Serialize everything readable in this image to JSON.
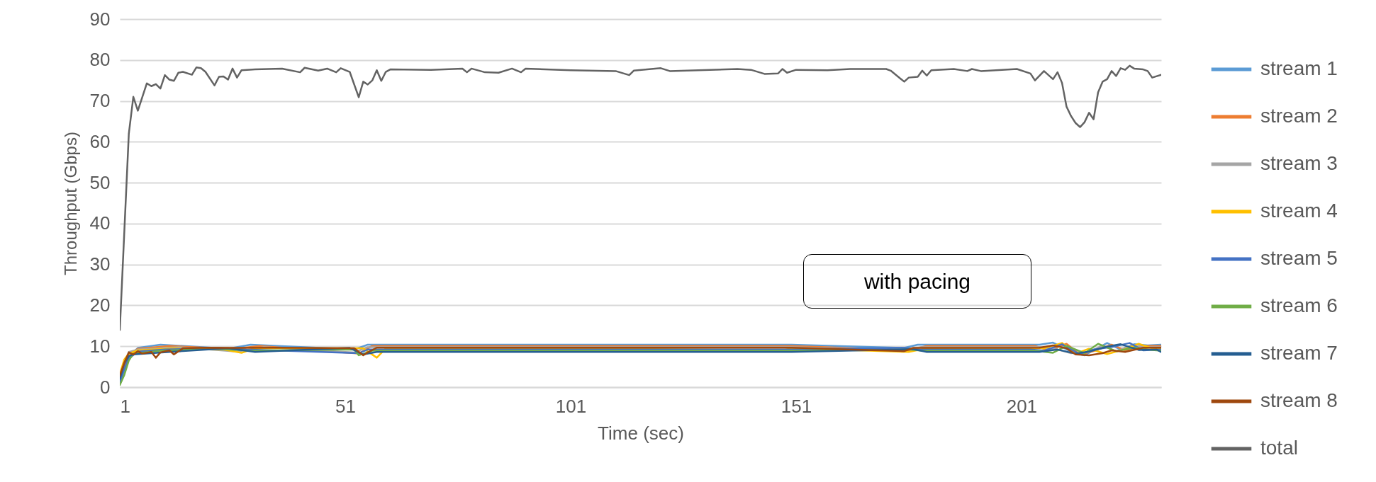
{
  "chart_data": {
    "type": "line",
    "xlabel": "Time (sec)",
    "ylabel": "Throughput (Gbps)",
    "xlim": [
      1,
      232
    ],
    "xticks": [
      1,
      51,
      101,
      151,
      201
    ],
    "ylim": [
      0,
      90
    ],
    "yticks": [
      0,
      10,
      20,
      30,
      40,
      50,
      60,
      70,
      80,
      90
    ],
    "grid": "y",
    "legend": "right",
    "annotations": [
      "with pacing"
    ],
    "series": [
      {
        "name": "stream 1",
        "color": "#5b9bd5",
        "x": [
          1,
          2,
          3,
          5,
          10,
          25,
          30,
          53,
          56,
          100,
          150,
          175,
          178,
          205,
          208,
          212,
          215,
          218,
          220,
          223,
          226,
          229,
          232
        ],
        "values": [
          0.8,
          4,
          7.5,
          9.6,
          10.4,
          9.4,
          10.4,
          9.2,
          10.4,
          10.4,
          10.4,
          9.6,
          10.4,
          10.4,
          10.9,
          8.7,
          7.8,
          9.6,
          10.8,
          9.2,
          10.5,
          10.2,
          10.4
        ]
      },
      {
        "name": "stream 2",
        "color": "#ed7d31",
        "x": [
          1,
          2,
          3,
          5,
          12,
          26,
          32,
          54,
          57,
          100,
          150,
          176,
          180,
          204,
          207,
          211,
          214,
          217,
          221,
          224,
          228,
          232
        ],
        "values": [
          1.6,
          5,
          8,
          9.4,
          10.1,
          9.3,
          10.1,
          8.2,
          10.1,
          10.1,
          10.1,
          9.0,
          10.1,
          10.1,
          9.0,
          10.6,
          8.0,
          8.8,
          10.4,
          9.0,
          10.1,
          10.1
        ]
      },
      {
        "name": "stream 3",
        "color": "#a5a5a5",
        "x": [
          1,
          2,
          3,
          5,
          14,
          27,
          33,
          53,
          56,
          100,
          150,
          174,
          179,
          205,
          209,
          212,
          216,
          219,
          222,
          225,
          229,
          232
        ],
        "values": [
          2.4,
          6,
          8.6,
          9.2,
          9.8,
          8.7,
          9.8,
          8.5,
          9.8,
          9.8,
          9.8,
          9.1,
          9.8,
          9.8,
          9.2,
          8.3,
          8.6,
          10.2,
          8.7,
          10.1,
          9.8,
          9.8
        ]
      },
      {
        "name": "stream 4",
        "color": "#ffc000",
        "x": [
          1,
          2,
          3,
          5,
          13,
          24,
          28,
          31,
          55,
          58,
          60,
          100,
          148,
          150,
          176,
          180,
          206,
          210,
          213,
          216,
          220,
          224,
          227,
          230,
          232
        ],
        "values": [
          3.2,
          6.8,
          8.2,
          9.0,
          9.5,
          9.2,
          8.4,
          9.5,
          9.5,
          7.2,
          9.5,
          9.5,
          9.0,
          9.5,
          8.6,
          9.5,
          9.5,
          10.8,
          8.2,
          9.4,
          8.1,
          9.3,
          10.6,
          9.5,
          9.5
        ]
      },
      {
        "name": "stream 5",
        "color": "#4472c4",
        "x": [
          1,
          2,
          3,
          5,
          11,
          23,
          29,
          54,
          56,
          100,
          150,
          175,
          178,
          203,
          206,
          210,
          214,
          217,
          221,
          225,
          228,
          232
        ],
        "values": [
          1.2,
          4.5,
          7,
          8.7,
          9.2,
          9.6,
          9.2,
          8.3,
          9.2,
          9.2,
          9.2,
          9.6,
          9.2,
          9.2,
          8.9,
          10.5,
          8.0,
          9.2,
          9.8,
          10.8,
          9.0,
          9.2
        ]
      },
      {
        "name": "stream 6",
        "color": "#70ad47",
        "x": [
          1,
          2,
          3,
          4,
          10,
          22,
          30,
          53,
          54,
          57,
          100,
          150,
          176,
          179,
          204,
          208,
          211,
          215,
          218,
          222,
          226,
          230,
          232
        ],
        "values": [
          0.5,
          3,
          6.5,
          8.2,
          8.9,
          9.4,
          8.9,
          9.2,
          7.8,
          8.9,
          8.9,
          8.9,
          9.2,
          8.9,
          8.9,
          8.4,
          10.1,
          8.3,
          10.6,
          8.8,
          9.7,
          9.1,
          8.9
        ]
      },
      {
        "name": "stream 7",
        "color": "#255e91",
        "x": [
          1,
          2,
          3,
          4,
          12,
          25,
          31,
          52,
          55,
          58,
          100,
          150,
          177,
          180,
          205,
          209,
          213,
          216,
          220,
          223,
          227,
          231,
          232
        ],
        "values": [
          2,
          5.8,
          7.6,
          8.0,
          8.6,
          9.5,
          8.6,
          9.6,
          8.0,
          8.6,
          8.6,
          8.6,
          9.3,
          8.6,
          8.6,
          9.2,
          8.2,
          8.7,
          9.9,
          10.5,
          9.1,
          9.2,
          8.6
        ]
      },
      {
        "name": "stream 8",
        "color": "#9e480e",
        "x": [
          1,
          2,
          3,
          4,
          5,
          6,
          8,
          9,
          10,
          12,
          13,
          15,
          20,
          27,
          35,
          53,
          55,
          56,
          58,
          100,
          150,
          175,
          177,
          205,
          208,
          211,
          213,
          216,
          219,
          221,
          224,
          228,
          232
        ],
        "values": [
          2.8,
          6,
          8.5,
          8.0,
          8.8,
          8.2,
          8.6,
          7.2,
          8.5,
          9.0,
          8.0,
          9.5,
          9.65,
          9.6,
          9.65,
          9.5,
          7.8,
          8.5,
          9.65,
          9.65,
          9.65,
          8.8,
          9.6,
          9.65,
          10.2,
          9.5,
          8.0,
          7.8,
          8.3,
          9.0,
          8.6,
          9.65,
          9.65
        ]
      },
      {
        "name": "total",
        "color": "#636363",
        "x": [
          1,
          2,
          3,
          4,
          5,
          7,
          8,
          9,
          10,
          11,
          12,
          13,
          14,
          15,
          17,
          18,
          19,
          20,
          22,
          23,
          24,
          25,
          26,
          27,
          28,
          31,
          37,
          41,
          42,
          45,
          47,
          49,
          50,
          52,
          54,
          55,
          56,
          57,
          58,
          59,
          60,
          61,
          70,
          77,
          78,
          79,
          82,
          85,
          88,
          90,
          91,
          101,
          111,
          114,
          115,
          121,
          123,
          138,
          141,
          144,
          147,
          148,
          149,
          151,
          158,
          163,
          171,
          172,
          175,
          176,
          178,
          179,
          180,
          181,
          186,
          189,
          190,
          192,
          200,
          203,
          204,
          206,
          208,
          209,
          210,
          211,
          212,
          213,
          214,
          215,
          216,
          217,
          218,
          219,
          220,
          221,
          222,
          223,
          224,
          225,
          226,
          228,
          229,
          230,
          232
        ],
        "values": [
          14,
          38,
          62,
          71,
          67.6,
          74.3,
          73.6,
          74.1,
          73,
          76.3,
          75.2,
          74.9,
          76.9,
          77.1,
          76.4,
          78.2,
          78,
          77.1,
          73.8,
          75.9,
          76,
          75.2,
          77.9,
          75.7,
          77.5,
          77.7,
          77.9,
          77,
          78.1,
          77.4,
          77.9,
          77,
          78,
          77.1,
          70.9,
          74.7,
          74,
          75,
          77.5,
          74.9,
          77.1,
          77.7,
          77.6,
          77.9,
          77,
          77.9,
          77,
          76.9,
          77.9,
          77,
          77.9,
          77.5,
          77.3,
          76.3,
          77.4,
          78,
          77.3,
          77.8,
          77.6,
          76.6,
          76.7,
          77.8,
          76.9,
          77.6,
          77.5,
          77.8,
          77.8,
          77.4,
          74.7,
          75.7,
          75.9,
          77.4,
          76.2,
          77.5,
          77.8,
          77.3,
          77.8,
          77.3,
          77.8,
          76.7,
          75,
          77.3,
          75.3,
          77,
          74.4,
          68.6,
          66.3,
          64.6,
          63.6,
          64.8,
          67.1,
          65.5,
          72.1,
          74.7,
          75.3,
          77.3,
          76.1,
          78,
          77.6,
          78.6,
          77.9,
          77.7,
          77.3,
          75.7,
          76.4
        ]
      }
    ]
  }
}
